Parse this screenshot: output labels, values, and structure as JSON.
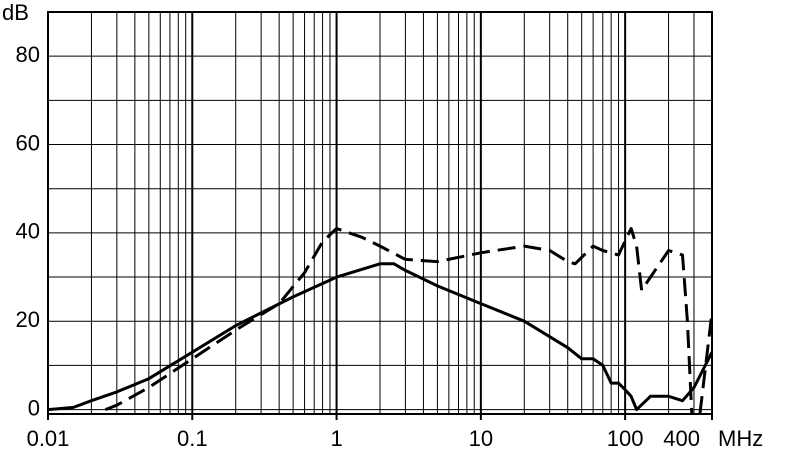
{
  "chart_data": {
    "type": "line",
    "y_label": "dB",
    "x_label": "MHz",
    "xlim": [
      0.01,
      400
    ],
    "ylim": [
      -1,
      90
    ],
    "log_x": true,
    "grid": true,
    "xticks": [
      0.01,
      0.1,
      1,
      10,
      100,
      400
    ],
    "yticks": [
      0,
      20,
      40,
      60,
      80
    ],
    "series": [
      {
        "color": "#000000",
        "line_style": "solid",
        "x": [
          0.01,
          0.015,
          0.02,
          0.03,
          0.05,
          0.1,
          0.2,
          0.5,
          1,
          2,
          2.5,
          3,
          5,
          10,
          20,
          40,
          50,
          60,
          70,
          80,
          90,
          100,
          110,
          120,
          150,
          200,
          250,
          300,
          400
        ],
        "values": [
          0,
          0.5,
          2,
          4,
          7,
          13,
          19,
          25.5,
          30,
          33,
          33,
          31.5,
          28,
          24,
          20,
          14,
          11.5,
          11.5,
          10,
          6,
          6,
          4.5,
          3,
          0,
          3,
          3,
          2,
          5,
          13
        ]
      },
      {
        "color": "#000000",
        "line_style": "dashed",
        "x": [
          0.025,
          0.03,
          0.05,
          0.1,
          0.2,
          0.4,
          0.6,
          0.8,
          1,
          1.5,
          2,
          3,
          5,
          10,
          20,
          30,
          40,
          45,
          60,
          70,
          90,
          110,
          120,
          130,
          150,
          200,
          250,
          270,
          290,
          310,
          330,
          400
        ],
        "values": [
          0,
          1,
          5,
          11.5,
          18,
          24,
          31,
          38,
          41,
          39,
          37,
          34,
          33.5,
          35.5,
          37,
          36,
          33.5,
          33,
          37,
          36,
          35,
          41,
          37,
          27,
          30,
          36,
          35,
          20,
          -1,
          null,
          -1,
          22
        ]
      }
    ]
  }
}
